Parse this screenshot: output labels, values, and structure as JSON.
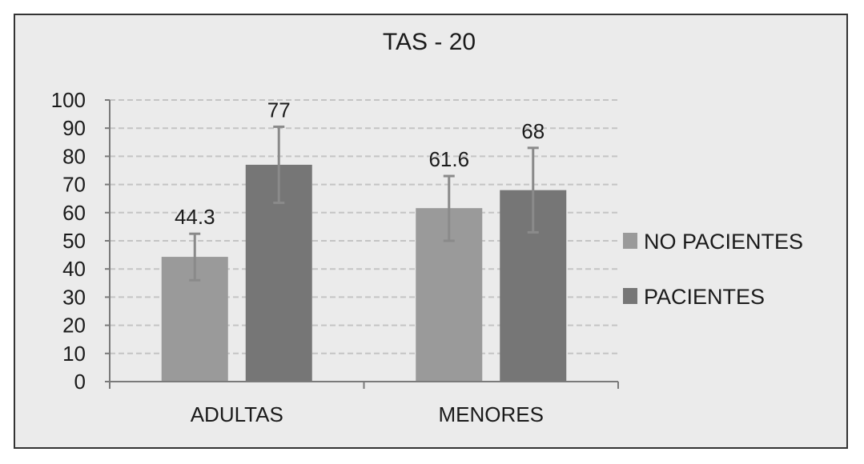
{
  "chart_data": {
    "type": "bar",
    "title": "TAS - 20",
    "categories": [
      "ADULTAS",
      "MENORES"
    ],
    "series": [
      {
        "name": "NO PACIENTES",
        "values": [
          44.3,
          61.6
        ],
        "value_labels": [
          "44.3",
          "61.6"
        ],
        "error_low": [
          36,
          50
        ],
        "error_high": [
          52.5,
          73
        ],
        "color": "#9a9a9a"
      },
      {
        "name": "PACIENTES",
        "values": [
          77,
          68
        ],
        "value_labels": [
          "77",
          "68"
        ],
        "error_low": [
          63.5,
          53
        ],
        "error_high": [
          90.5,
          83
        ],
        "color": "#767676"
      }
    ],
    "y_ticks": [
      "0",
      "10",
      "20",
      "30",
      "40",
      "50",
      "60",
      "70",
      "80",
      "90",
      "100"
    ],
    "ylim": [
      0,
      100
    ],
    "xlabel": "",
    "ylabel": "",
    "grid": true,
    "legend": "right"
  },
  "colors": {
    "background": "#ebebeb",
    "gridline": "#c4c4c4",
    "error_bar": "#8a8a8a",
    "axis": "#7a7a7a"
  }
}
